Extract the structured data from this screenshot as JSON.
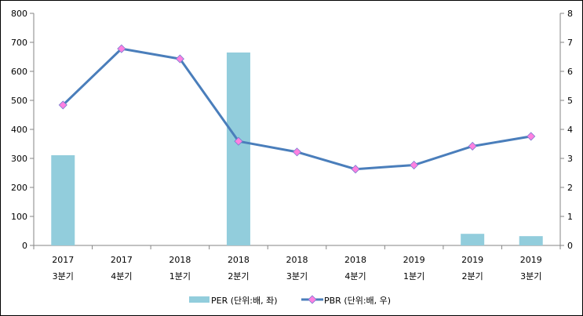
{
  "chart_data": {
    "type": "bar+line",
    "categories": [
      [
        "2017",
        "3분기"
      ],
      [
        "2017",
        "4분기"
      ],
      [
        "2018",
        "1분기"
      ],
      [
        "2018",
        "2분기"
      ],
      [
        "2018",
        "3분기"
      ],
      [
        "2018",
        "4분기"
      ],
      [
        "2019",
        "1분기"
      ],
      [
        "2019",
        "2분기"
      ],
      [
        "2019",
        "3분기"
      ]
    ],
    "series": [
      {
        "name": "PER (단위:배, 좌)",
        "type": "bar",
        "axis": "left",
        "color": "#92CDDC",
        "values": [
          311,
          null,
          null,
          665,
          null,
          null,
          null,
          40,
          32
        ]
      },
      {
        "name": "PBR (단위:배, 우)",
        "type": "line",
        "axis": "right",
        "color": "#4A7EBB",
        "marker_color": "#FF80E0",
        "values": [
          4.84,
          6.78,
          6.43,
          3.59,
          3.22,
          2.63,
          2.77,
          3.42,
          3.76
        ]
      }
    ],
    "ylim_left": [
      0,
      800
    ],
    "yticks_left": [
      0,
      100,
      200,
      300,
      400,
      500,
      600,
      700,
      800
    ],
    "ylim_right": [
      0,
      8
    ],
    "yticks_right": [
      0,
      1,
      2,
      3,
      4,
      5,
      6,
      7,
      8
    ],
    "grid": false,
    "legend": "bottom"
  }
}
